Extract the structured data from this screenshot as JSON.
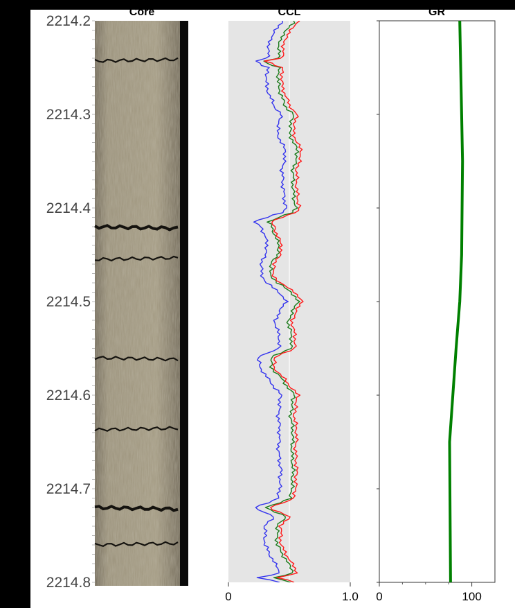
{
  "panels": {
    "core": {
      "title": "Core"
    },
    "ccl": {
      "title": "CCL"
    },
    "gr": {
      "title": "GR"
    }
  },
  "colors": {
    "ccl_background": "#e5e5e5",
    "ccl_red": "#ff1a1a",
    "ccl_green": "#1a7a1a",
    "ccl_blue": "#3333ee",
    "gr_line": "#008000",
    "core_base": "#8a8068"
  },
  "chart_data": [
    {
      "type": "image",
      "title": "Core",
      "depth_ticks": [
        "2214.2",
        "2214.3",
        "2214.4",
        "2214.5",
        "2214.6",
        "2214.7",
        "2214.8"
      ],
      "ylim": [
        2214.2,
        2214.8
      ],
      "fractures_at_depth": [
        2214.243,
        2214.42,
        2214.455,
        2214.56,
        2214.637,
        2214.72,
        2214.76
      ]
    },
    {
      "type": "line",
      "title": "CCL",
      "xlim": [
        0,
        1.0
      ],
      "xtick_labels": [
        "0",
        "1.0"
      ],
      "ylim": [
        2214.2,
        2214.8
      ],
      "grid": "vertical line at 0.5",
      "depth": [
        2214.2,
        2214.22,
        2214.24,
        2214.243,
        2214.25,
        2214.27,
        2214.29,
        2214.3,
        2214.32,
        2214.34,
        2214.36,
        2214.38,
        2214.4,
        2214.405,
        2214.415,
        2214.42,
        2214.43,
        2214.44,
        2214.45,
        2214.46,
        2214.47,
        2214.48,
        2214.49,
        2214.5,
        2214.52,
        2214.54,
        2214.55,
        2214.56,
        2214.57,
        2214.58,
        2214.6,
        2214.62,
        2214.64,
        2214.66,
        2214.68,
        2214.7,
        2214.71,
        2214.72,
        2214.73,
        2214.74,
        2214.76,
        2214.78,
        2214.79,
        2214.795,
        2214.8
      ],
      "series": [
        {
          "name": "red",
          "values": [
            0.57,
            0.46,
            0.44,
            0.3,
            0.44,
            0.44,
            0.5,
            0.56,
            0.53,
            0.6,
            0.56,
            0.56,
            0.58,
            0.55,
            0.34,
            0.38,
            0.4,
            0.44,
            0.42,
            0.38,
            0.36,
            0.42,
            0.55,
            0.6,
            0.52,
            0.55,
            0.54,
            0.38,
            0.37,
            0.44,
            0.57,
            0.54,
            0.56,
            0.55,
            0.56,
            0.55,
            0.54,
            0.34,
            0.5,
            0.43,
            0.43,
            0.52,
            0.57,
            0.4,
            0.54
          ]
        },
        {
          "name": "green",
          "values": [
            0.54,
            0.42,
            0.41,
            0.28,
            0.41,
            0.41,
            0.46,
            0.53,
            0.5,
            0.57,
            0.53,
            0.53,
            0.55,
            0.52,
            0.32,
            0.36,
            0.38,
            0.42,
            0.4,
            0.35,
            0.34,
            0.4,
            0.52,
            0.57,
            0.49,
            0.52,
            0.51,
            0.35,
            0.35,
            0.42,
            0.54,
            0.51,
            0.53,
            0.52,
            0.53,
            0.52,
            0.51,
            0.31,
            0.47,
            0.4,
            0.4,
            0.49,
            0.54,
            0.37,
            0.51
          ]
        },
        {
          "name": "blue",
          "values": [
            0.44,
            0.34,
            0.32,
            0.22,
            0.32,
            0.31,
            0.37,
            0.43,
            0.4,
            0.47,
            0.44,
            0.45,
            0.47,
            0.44,
            0.2,
            0.27,
            0.3,
            0.32,
            0.3,
            0.27,
            0.27,
            0.31,
            0.42,
            0.47,
            0.38,
            0.42,
            0.41,
            0.24,
            0.26,
            0.31,
            0.43,
            0.41,
            0.42,
            0.41,
            0.43,
            0.42,
            0.41,
            0.22,
            0.37,
            0.3,
            0.3,
            0.38,
            0.43,
            0.24,
            0.42
          ]
        }
      ]
    },
    {
      "type": "line",
      "title": "GR",
      "xlim": [
        0,
        125
      ],
      "xtick_labels": [
        "0",
        "100"
      ],
      "ylim": [
        2214.2,
        2214.8
      ],
      "series": [
        {
          "name": "GR",
          "depth": [
            2214.2,
            2214.3,
            2214.35,
            2214.45,
            2214.5,
            2214.55,
            2214.65,
            2214.8
          ],
          "values": [
            87,
            89,
            90,
            89,
            87,
            83,
            76,
            77
          ]
        }
      ]
    }
  ]
}
